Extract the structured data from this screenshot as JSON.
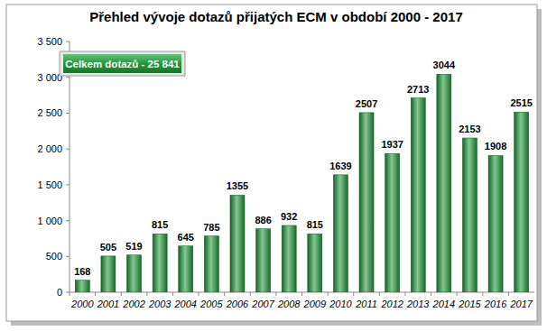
{
  "chart_data": {
    "type": "bar",
    "title": "Přehled vývoje dotazů přijatých ECM v období 2000 - 2017",
    "annotation": "Celkem dotazů - 25 841",
    "categories": [
      "2000",
      "2001",
      "2002",
      "2003",
      "2004",
      "2005",
      "2006",
      "2007",
      "2008",
      "2009",
      "2010",
      "2011",
      "2012",
      "2013",
      "2014",
      "2015",
      "2016",
      "2017"
    ],
    "values": [
      168,
      505,
      519,
      815,
      645,
      785,
      1355,
      886,
      932,
      815,
      1639,
      2507,
      1937,
      2713,
      3044,
      2153,
      1908,
      2515
    ],
    "color": "#1f9a3a",
    "ylim": [
      0,
      3500
    ],
    "yticks": [
      0,
      500,
      {
        "value": 1000,
        "label": "1 000"
      },
      {
        "value": 1500,
        "label": "1 500"
      },
      {
        "value": 2000,
        "label": "2 000"
      },
      {
        "value": 2500,
        "label": "2 500"
      },
      {
        "value": 3000,
        "label": "3 000"
      },
      {
        "value": 3500,
        "label": "3 500"
      }
    ],
    "grid": false,
    "data_labels": true
  }
}
